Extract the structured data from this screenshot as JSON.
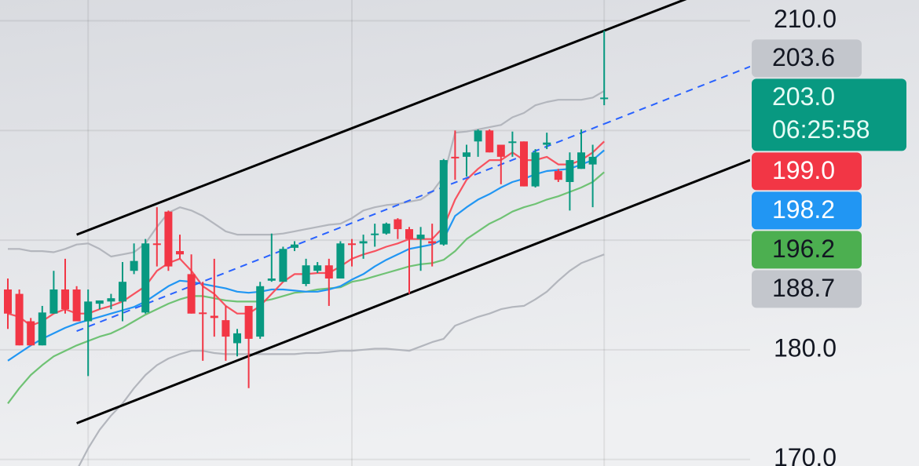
{
  "chart_data": {
    "type": "candlestick",
    "categories": [
      null,
      null,
      null,
      null,
      null,
      null,
      null,
      null,
      null,
      null,
      null,
      null,
      null,
      null,
      null,
      null,
      null,
      null,
      null,
      null,
      null,
      null,
      null,
      null,
      null,
      null,
      null,
      null,
      null,
      null,
      null,
      null,
      null,
      null,
      null,
      null,
      null,
      null,
      null,
      null,
      null,
      null,
      null,
      null,
      null,
      null,
      null,
      null,
      null,
      null,
      null,
      null,
      null
    ],
    "open": [
      185.5,
      185.1,
      182.6,
      180.4,
      183.3,
      185.5,
      185.5,
      182.6,
      184.2,
      184.4,
      184.4,
      187.2,
      183.4,
      189.7,
      192.6,
      189.0,
      186.9,
      183.4,
      183.1,
      182.7,
      180.6,
      184.0,
      181.2,
      186.3,
      186.2,
      189.3,
      186.0,
      187.2,
      187.7,
      186.5,
      189.7,
      189.7,
      190.5,
      190.6,
      191.9,
      191.0,
      190.1,
      189.9,
      189.6,
      197.6,
      197.6,
      199.0,
      200.0,
      198.7,
      198.9,
      199.0,
      194.9,
      198.7,
      196.3,
      195.3,
      196.5,
      196.9,
      202.9
    ],
    "high": [
      186.5,
      185.5,
      182.9,
      184.0,
      187.2,
      188.3,
      185.8,
      185.5,
      184.5,
      185.1,
      188.0,
      189.7,
      190.1,
      193.0,
      192.7,
      190.5,
      188.7,
      186.2,
      188.3,
      184.0,
      181.9,
      184.0,
      186.2,
      190.6,
      189.4,
      189.9,
      188.3,
      188.0,
      188.3,
      189.9,
      190.1,
      190.5,
      191.5,
      191.6,
      192.0,
      191.2,
      191.2,
      191.5,
      197.4,
      200.0,
      198.7,
      200.1,
      200.1,
      198.7,
      199.9,
      199.0,
      198.3,
      199.8,
      196.5,
      198.0,
      200.1,
      198.7,
      209.1
    ],
    "low": [
      181.9,
      180.4,
      180.4,
      180.4,
      183.3,
      183.3,
      182.6,
      177.6,
      183.7,
      183.7,
      182.6,
      186.9,
      183.3,
      187.6,
      187.2,
      188.3,
      183.3,
      179.0,
      181.2,
      179.0,
      179.4,
      176.5,
      181.0,
      186.2,
      186.2,
      189.0,
      185.8,
      187.0,
      184.0,
      186.5,
      187.6,
      188.3,
      189.4,
      190.5,
      190.1,
      185.1,
      187.2,
      187.6,
      189.5,
      195.5,
      195.8,
      197.6,
      198.0,
      195.1,
      197.6,
      194.9,
      194.8,
      198.3,
      195.3,
      192.7,
      196.5,
      193.0,
      202.3
    ],
    "close": [
      183.3,
      180.4,
      180.4,
      183.4,
      185.5,
      183.7,
      182.6,
      184.4,
      184.5,
      184.7,
      186.2,
      188.1,
      189.7,
      189.6,
      187.6,
      188.7,
      183.3,
      183.3,
      182.9,
      181.2,
      181.5,
      181.0,
      185.8,
      186.5,
      189.2,
      189.6,
      187.7,
      187.7,
      186.5,
      189.7,
      189.6,
      189.9,
      190.6,
      191.5,
      191.0,
      190.1,
      190.5,
      189.7,
      197.3,
      197.5,
      198.0,
      200.0,
      198.0,
      197.6,
      199.0,
      194.9,
      198.0,
      198.9,
      195.5,
      197.3,
      198.0,
      197.6,
      203.0
    ],
    "up_color": "#089981",
    "down_color": "#f23645",
    "overlays": [
      {
        "color": "#b3b6bd",
        "values": [
          189.2,
          189.2,
          189.0,
          189.0,
          188.9,
          189.2,
          189.6,
          189.7,
          189.2,
          188.5,
          188.7,
          188.9,
          189.7,
          191.2,
          192.5,
          193.0,
          192.7,
          192.2,
          191.5,
          190.8,
          190.5,
          190.5,
          190.5,
          190.5,
          190.6,
          190.8,
          191.0,
          191.2,
          191.4,
          191.5,
          192.0,
          192.7,
          193.0,
          193.2,
          193.3,
          193.5,
          193.7,
          194.4,
          195.8,
          199.8,
          199.9,
          200.1,
          200.3,
          200.5,
          201.2,
          201.6,
          202.3,
          202.6,
          202.8,
          202.8,
          202.8,
          203.0,
          203.6
        ]
      },
      {
        "color": "#b3b6bd",
        "values": [
          null,
          null,
          null,
          null,
          null,
          null,
          169.0,
          171.0,
          172.7,
          174.0,
          175.1,
          176.5,
          177.7,
          178.6,
          179.2,
          179.6,
          179.9,
          179.9,
          179.7,
          179.6,
          179.6,
          179.6,
          179.6,
          179.6,
          179.6,
          179.6,
          179.7,
          179.7,
          179.8,
          179.9,
          179.9,
          180.0,
          180.1,
          180.1,
          180.0,
          179.9,
          180.3,
          180.7,
          181.0,
          182.2,
          182.6,
          183.0,
          183.3,
          183.7,
          183.9,
          184.0,
          184.6,
          185.3,
          186.3,
          187.2,
          187.9,
          188.3,
          188.7
        ]
      },
      {
        "color": "#6fc274",
        "values": [
          175.1,
          176.5,
          177.7,
          178.6,
          179.4,
          179.9,
          180.4,
          180.8,
          181.2,
          181.5,
          182.0,
          182.6,
          183.2,
          183.7,
          184.2,
          184.6,
          184.9,
          184.9,
          184.7,
          184.5,
          184.4,
          184.4,
          184.4,
          184.6,
          184.9,
          185.2,
          185.3,
          185.5,
          185.6,
          185.7,
          186.2,
          186.4,
          186.7,
          187.0,
          187.3,
          187.6,
          187.8,
          187.9,
          188.2,
          189.0,
          190.1,
          190.8,
          191.5,
          192.0,
          192.6,
          193.0,
          193.3,
          193.7,
          194.0,
          194.4,
          194.8,
          195.3,
          196.2
        ]
      },
      {
        "color": "#2196f3",
        "values": [
          179.0,
          179.7,
          180.4,
          181.0,
          181.5,
          182.0,
          182.4,
          182.7,
          183.0,
          183.3,
          183.6,
          183.9,
          184.4,
          185.1,
          185.8,
          186.3,
          186.2,
          186.0,
          185.8,
          185.6,
          185.3,
          185.2,
          185.3,
          185.5,
          185.5,
          185.4,
          185.3,
          185.3,
          185.5,
          185.8,
          186.4,
          186.9,
          187.6,
          188.2,
          188.7,
          189.2,
          189.4,
          189.6,
          190.1,
          192.2,
          193.0,
          193.7,
          194.2,
          194.8,
          195.3,
          195.6,
          196.0,
          196.3,
          196.4,
          196.5,
          196.9,
          197.3,
          198.2
        ]
      },
      {
        "color": "#f7525f",
        "values": [
          183.3,
          183.0,
          182.2,
          182.6,
          183.3,
          183.7,
          183.3,
          183.3,
          183.7,
          184.0,
          184.4,
          185.1,
          185.8,
          187.2,
          187.9,
          188.3,
          187.2,
          185.8,
          185.1,
          184.0,
          183.3,
          183.3,
          184.0,
          185.1,
          186.2,
          186.9,
          186.9,
          187.0,
          187.0,
          187.6,
          188.3,
          188.7,
          189.0,
          189.4,
          189.7,
          190.1,
          190.1,
          190.1,
          191.2,
          193.7,
          195.5,
          196.5,
          197.3,
          197.3,
          198.0,
          197.3,
          197.3,
          197.6,
          196.9,
          196.9,
          197.3,
          198.0,
          199.0
        ]
      }
    ],
    "trend_lines": [
      {
        "x": [
          6,
          52
        ],
        "values": [
          190.5,
          209.1
        ],
        "color": "#000000",
        "dashed": false,
        "extend": "right"
      },
      {
        "x": [
          6,
          52
        ],
        "values": [
          173.3,
          192.1
        ],
        "color": "#000000",
        "dashed": false,
        "extend": "right"
      },
      {
        "x": [
          6,
          52
        ],
        "values": [
          181.7,
          200.6
        ],
        "color": "#2962ff",
        "dashed": true,
        "extend": "right"
      }
    ],
    "ylim": [
      169.4,
      211.9
    ],
    "yticks": [
      {
        "value": 170,
        "label": "170.0"
      },
      {
        "value": 180,
        "label": "180.0"
      },
      {
        "value": 210,
        "label": "210.0"
      }
    ],
    "grid_lines": [
      190,
      200
    ],
    "x_grid": [
      7,
      30,
      52
    ],
    "price_labels": [
      {
        "value": 203.6,
        "label": "203.6",
        "color": "#c3c6cc",
        "text_color": "#131722"
      },
      {
        "value": 203.0,
        "label": "203.0",
        "countdown": "06:25:58",
        "color": "#089981",
        "text_color": "#e6fbf5",
        "current": true
      },
      {
        "value": 199.0,
        "label": "199.0",
        "color": "#f23645",
        "text_color": "#ffffff"
      },
      {
        "value": 198.2,
        "label": "198.2",
        "color": "#2196f3",
        "text_color": "#ffffff"
      },
      {
        "value": 196.2,
        "label": "196.2",
        "color": "#4caf50",
        "text_color": "#131722"
      },
      {
        "value": 188.7,
        "label": "188.7",
        "color": "#c3c6cc",
        "text_color": "#131722"
      }
    ]
  }
}
